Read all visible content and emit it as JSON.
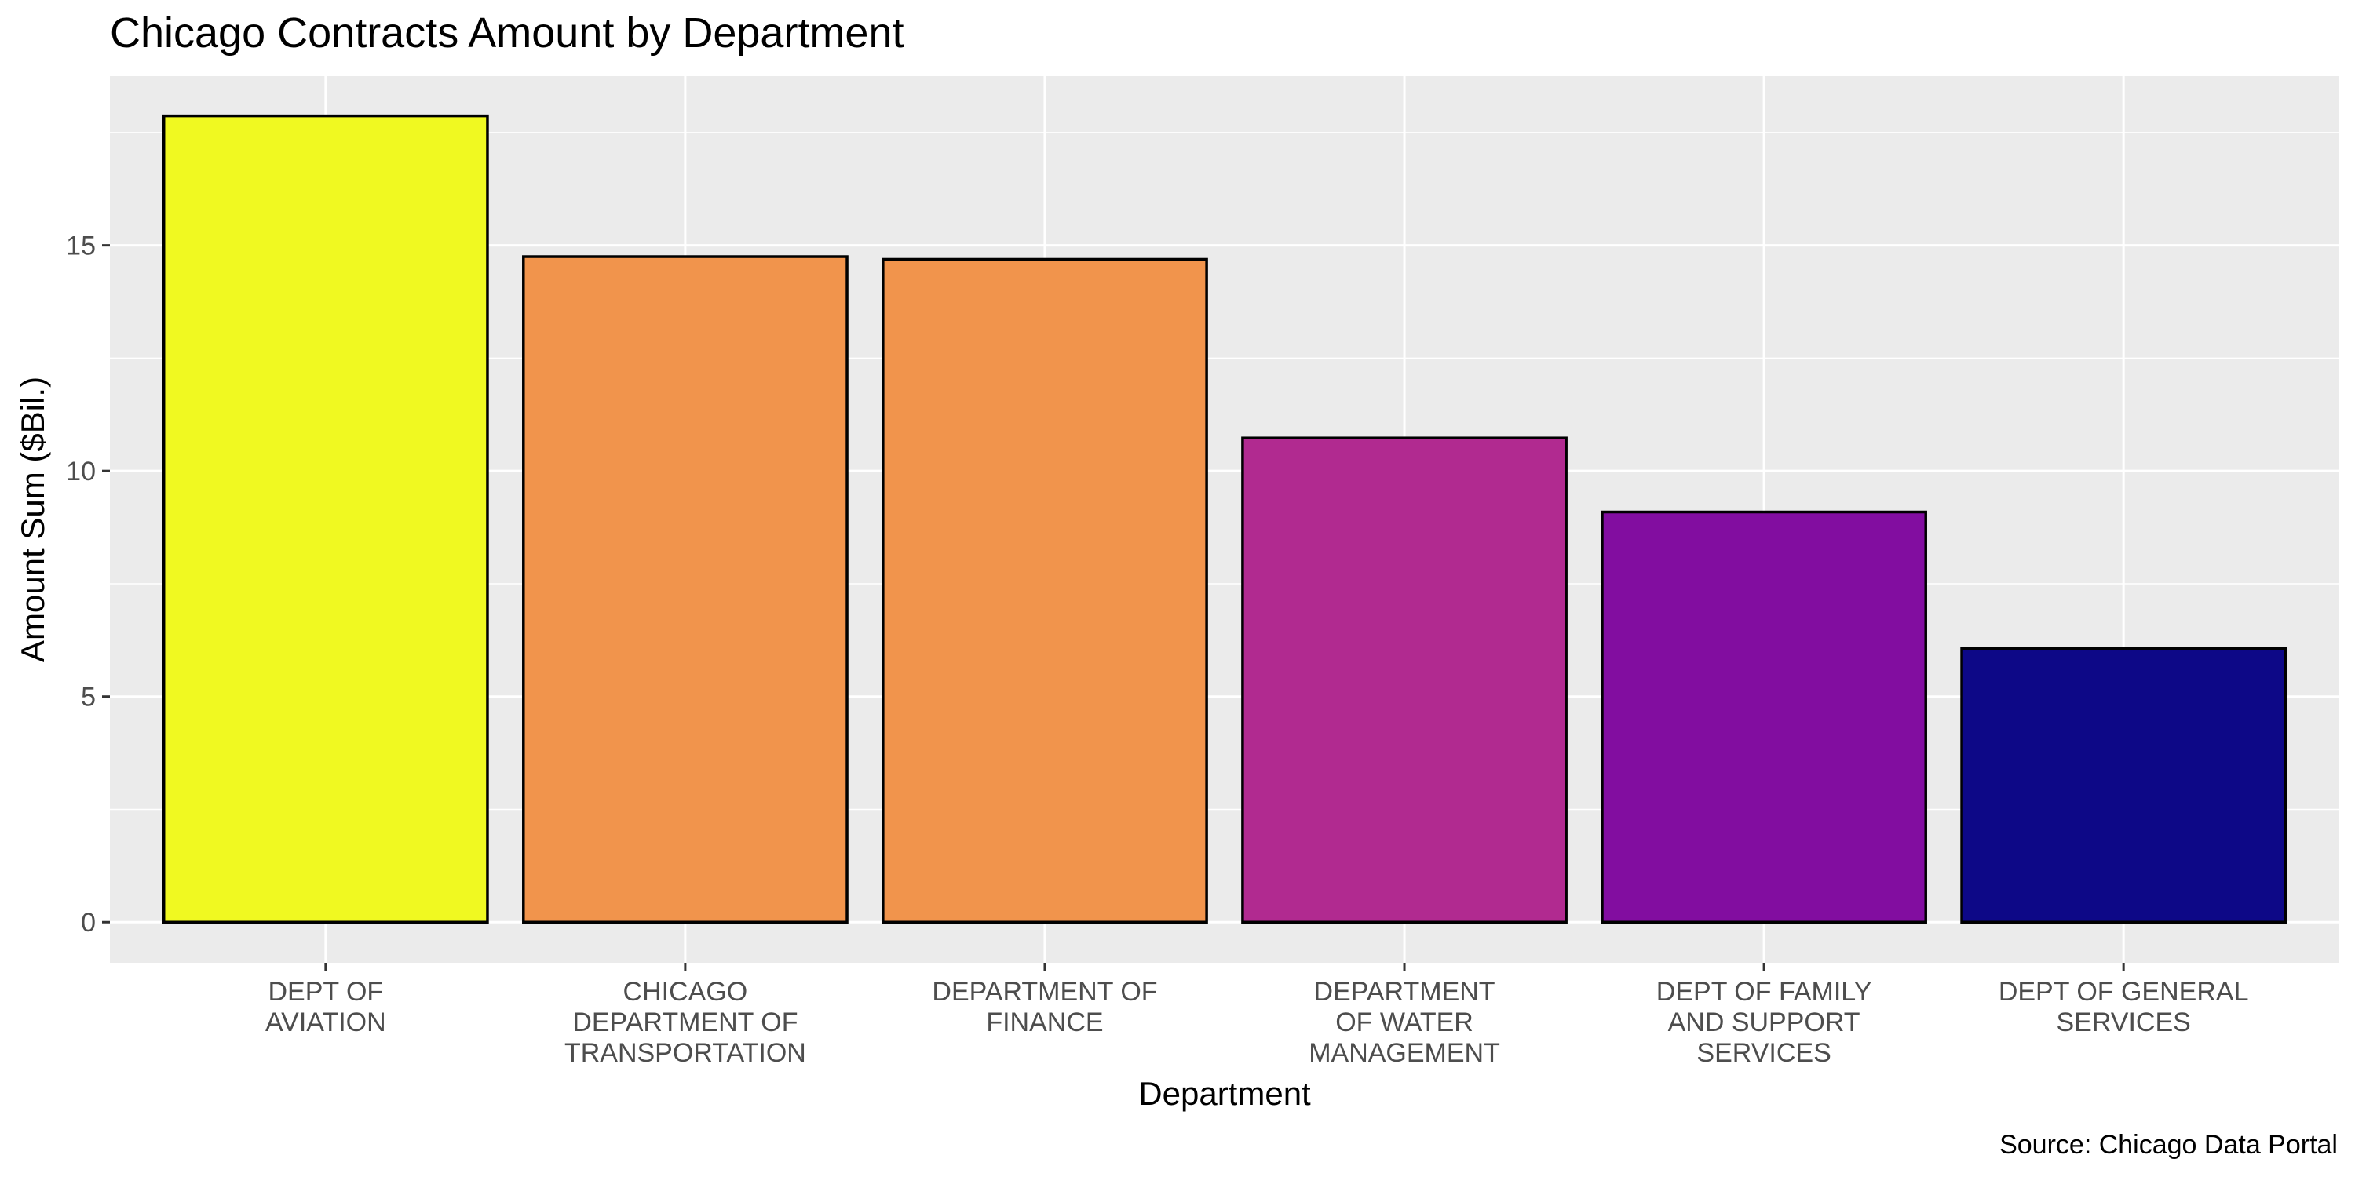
{
  "chart_data": {
    "type": "bar",
    "title": "Chicago Contracts Amount by Department",
    "xlabel": "Department",
    "ylabel": "Amount Sum ($Bil.)",
    "caption": "Source: Chicago Data Portal",
    "categories": [
      [
        "DEPT OF",
        "AVIATION"
      ],
      [
        "CHICAGO",
        "DEPARTMENT OF",
        "TRANSPORTATION"
      ],
      [
        "DEPARTMENT OF",
        "FINANCE"
      ],
      [
        "DEPARTMENT",
        "OF WATER",
        "MANAGEMENT"
      ],
      [
        "DEPT OF FAMILY",
        "AND SUPPORT",
        "SERVICES"
      ],
      [
        "DEPT OF GENERAL",
        "SERVICES"
      ]
    ],
    "values": [
      17.87,
      14.75,
      14.69,
      10.73,
      9.09,
      6.06
    ],
    "colors": [
      "#F0F921",
      "#F1944C",
      "#F1944C",
      "#B12A90",
      "#820DA0",
      "#0D0887"
    ],
    "ylim": [
      -0.9,
      18.75
    ],
    "yticks": [
      0,
      5,
      10,
      15
    ],
    "grid": true,
    "legend": "none"
  }
}
